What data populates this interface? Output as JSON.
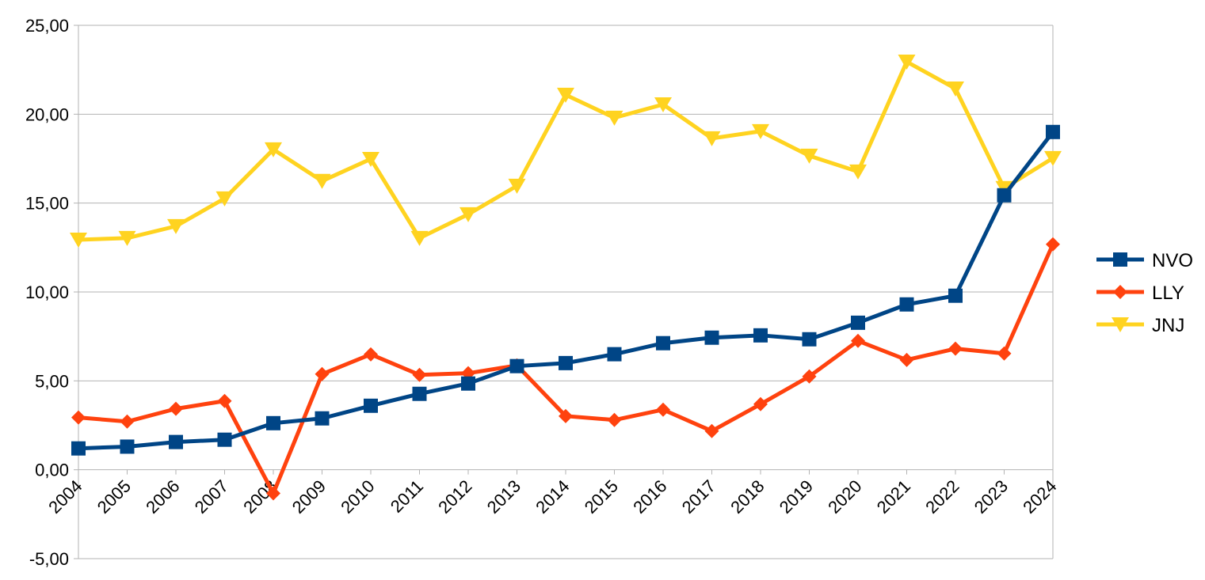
{
  "chart_data": {
    "type": "line",
    "title": "",
    "xlabel": "",
    "ylabel": "",
    "x": [
      "2004",
      "2005",
      "2006",
      "2007",
      "2008",
      "2009",
      "2010",
      "2011",
      "2012",
      "2013",
      "2014",
      "2015",
      "2016",
      "2017",
      "2018",
      "2019",
      "2020",
      "2021",
      "2022",
      "2023",
      "2024"
    ],
    "ylim": [
      -5,
      25
    ],
    "yticks": [
      "-5,00",
      "0,00",
      "5,00",
      "10,00",
      "15,00",
      "20,00",
      "25,00"
    ],
    "ytick_values": [
      -5,
      0,
      5,
      10,
      15,
      20,
      25
    ],
    "grid": "horizontal",
    "legend_position": "right",
    "series": [
      {
        "name": "NVO",
        "color": "#004586",
        "marker": "square",
        "values": [
          1.2,
          1.3,
          1.56,
          1.69,
          2.62,
          2.89,
          3.6,
          4.27,
          4.85,
          5.83,
          6.0,
          6.5,
          7.12,
          7.43,
          7.56,
          7.34,
          8.27,
          9.3,
          9.79,
          15.44,
          19.0
        ]
      },
      {
        "name": "LLY",
        "color": "#ff420e",
        "marker": "diamond",
        "values": [
          2.94,
          2.71,
          3.43,
          3.87,
          -1.33,
          5.38,
          6.49,
          5.34,
          5.43,
          5.87,
          3.02,
          2.8,
          3.38,
          2.18,
          3.69,
          5.25,
          7.25,
          6.18,
          6.81,
          6.54,
          12.68
        ]
      },
      {
        "name": "JNJ",
        "color": "#ffd320",
        "marker": "triangle-down",
        "values": [
          12.94,
          13.03,
          13.7,
          15.26,
          18.02,
          16.24,
          17.48,
          13.03,
          14.37,
          15.97,
          21.09,
          19.8,
          20.55,
          18.64,
          19.04,
          17.66,
          16.77,
          22.95,
          21.44,
          15.84,
          17.53
        ]
      }
    ]
  }
}
